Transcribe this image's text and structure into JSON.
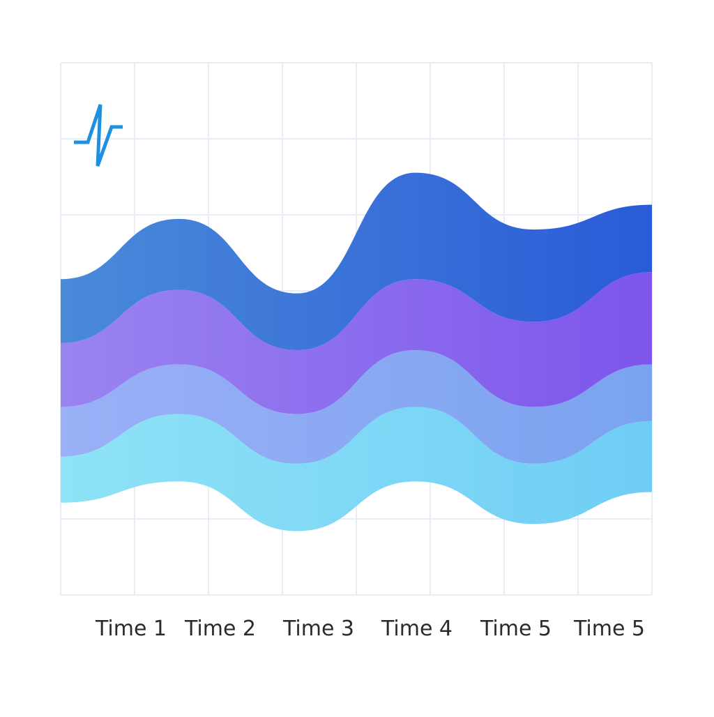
{
  "chart_data": {
    "type": "area",
    "subtype": "streamgraph",
    "title": "",
    "xlabel": "",
    "ylabel": "",
    "categories": [
      "Time 1",
      "Time 2",
      "Time 3",
      "Time 4",
      "Time 5",
      "Time 5"
    ],
    "baseline": [
      2.6,
      3.2,
      1.8,
      3.2,
      2.0,
      2.9
    ],
    "series": [
      {
        "values": [
          1.3,
          1.9,
          1.9,
          2.1,
          1.7,
          2.0
        ],
        "color": "#7fd8f4"
      },
      {
        "values": [
          1.4,
          1.4,
          1.4,
          1.6,
          1.6,
          1.6
        ],
        "color": "#8fa6f2"
      },
      {
        "values": [
          1.8,
          2.1,
          1.8,
          2.0,
          2.4,
          2.6
        ],
        "color": "#8a5ff0"
      },
      {
        "values": [
          1.8,
          2.0,
          1.6,
          3.0,
          2.6,
          1.9
        ],
        "color": "#3a6fd8"
      }
    ],
    "ylim": [
      0,
      15
    ],
    "grid": true,
    "legend": "none"
  },
  "logo": {
    "icon": "pulse-icon",
    "color": "#1f8fe0"
  },
  "colors": {
    "grid": "#e6edf6",
    "text": "#2b2b2b"
  }
}
